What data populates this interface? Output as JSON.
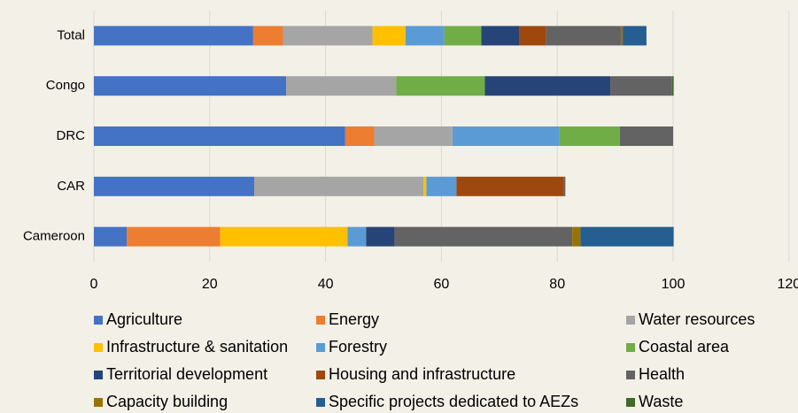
{
  "chart_data": {
    "type": "stacked-bar-horizontal",
    "categories": [
      "Total",
      "Congo",
      "DRC",
      "CAR",
      "Cameroon"
    ],
    "xlim": [
      0,
      120
    ],
    "xticks": [
      0,
      20,
      40,
      60,
      80,
      100,
      120
    ],
    "grid": true,
    "legend": "bottom",
    "series": [
      {
        "name": "Agriculture",
        "color": "#4472c4",
        "values": [
          27.5,
          33.2,
          43.4,
          27.7,
          5.7
        ]
      },
      {
        "name": "Energy",
        "color": "#ed7d31",
        "values": [
          5.2,
          0,
          5.0,
          0,
          16.1
        ]
      },
      {
        "name": "Water resources",
        "color": "#a5a5a5",
        "values": [
          15.4,
          19.0,
          13.5,
          29.2,
          0
        ]
      },
      {
        "name": "Infrastructure & sanitation",
        "color": "#ffc000",
        "values": [
          5.7,
          0,
          0,
          0.5,
          22.0
        ]
      },
      {
        "name": "Forestry",
        "color": "#5b9bd5",
        "values": [
          6.7,
          0,
          18.5,
          5.2,
          3.2
        ]
      },
      {
        "name": "Coastal area",
        "color": "#70ad47",
        "values": [
          6.4,
          15.3,
          10.4,
          0,
          0
        ]
      },
      {
        "name": "Territorial development",
        "color": "#264478",
        "values": [
          6.6,
          21.7,
          0,
          0,
          4.9
        ]
      },
      {
        "name": "Housing and infrastructure",
        "color": "#9e480e",
        "values": [
          4.6,
          0,
          0,
          18.5,
          0
        ]
      },
      {
        "name": "Health",
        "color": "#636363",
        "values": [
          13.0,
          10.6,
          9.2,
          0.3,
          30.7
        ]
      },
      {
        "name": "Capacity building",
        "color": "#997300",
        "values": [
          0.2,
          0,
          0,
          0,
          1.4
        ]
      },
      {
        "name": "Specific projects dedicated to AEZs",
        "color": "#255e91",
        "values": [
          4.1,
          0,
          0,
          0,
          16.1
        ]
      },
      {
        "name": "Waste",
        "color": "#43682b",
        "values": [
          0,
          0.3,
          0,
          0,
          0
        ]
      }
    ]
  }
}
